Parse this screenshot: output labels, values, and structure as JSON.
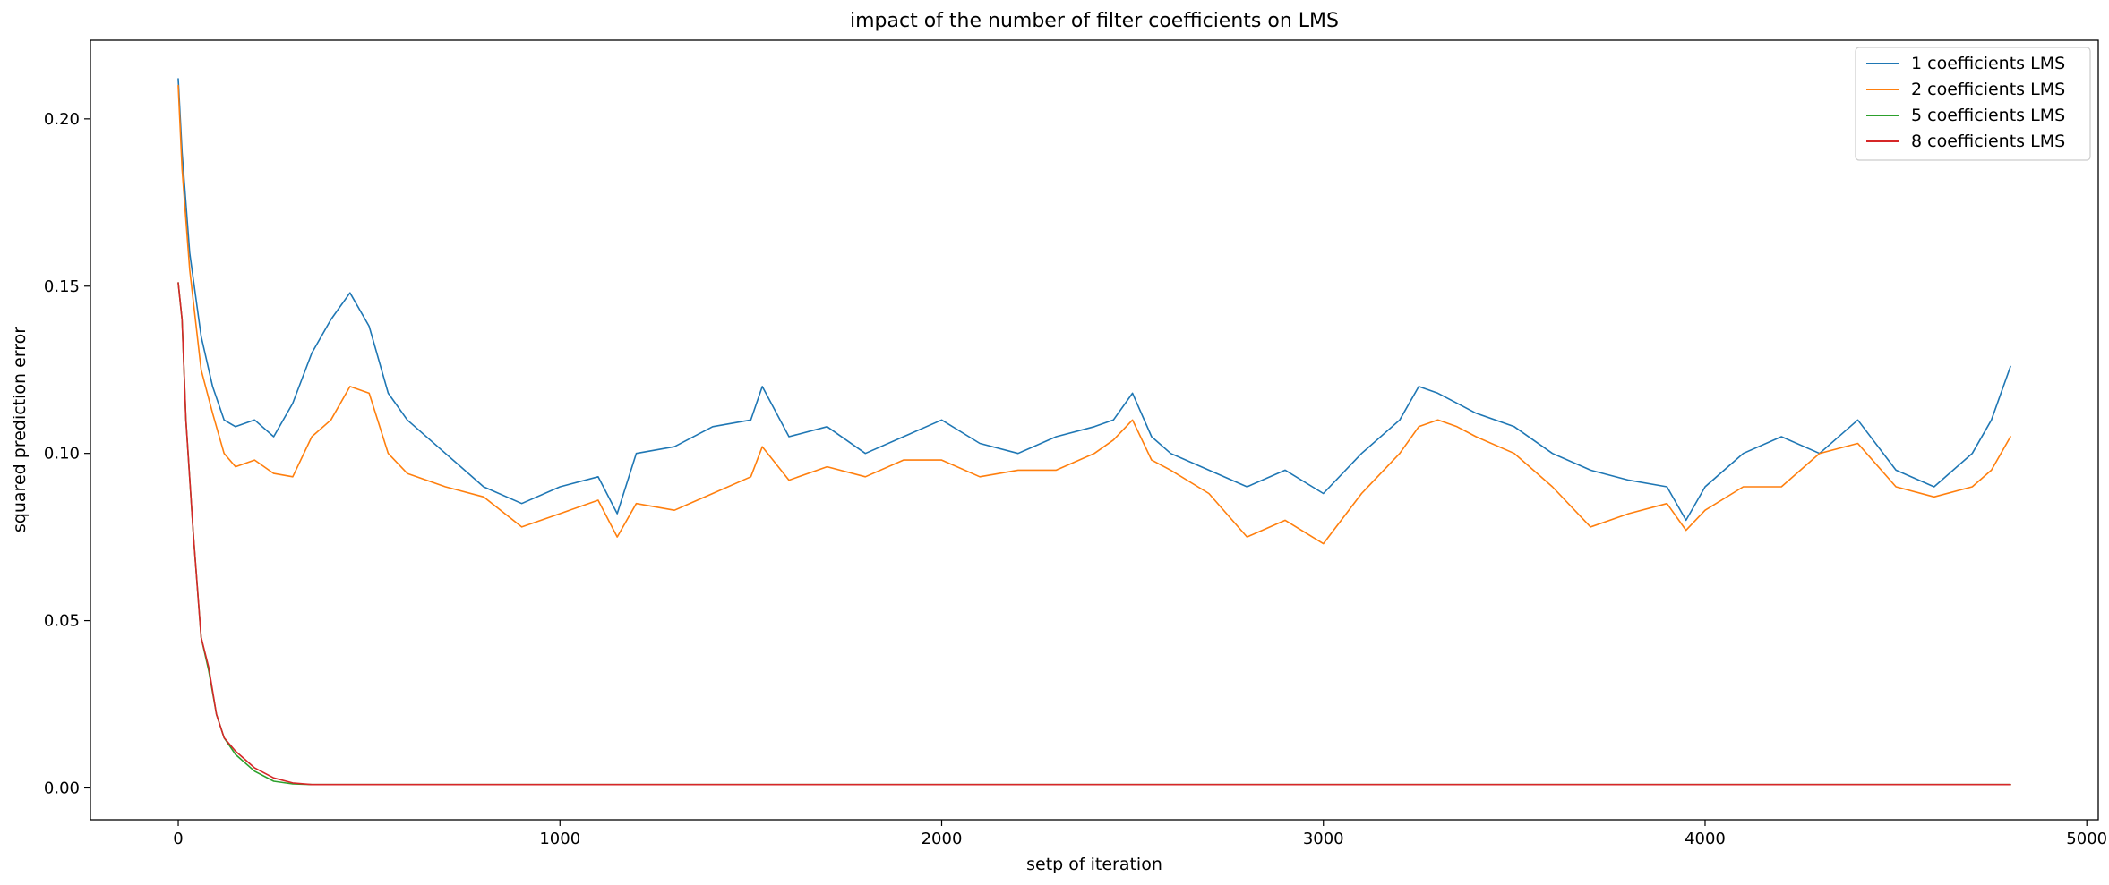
{
  "chart_data": {
    "type": "line",
    "title": "impact of the number of filter coefficients on LMS",
    "xlabel": "setp of iteration",
    "ylabel": "squared prediction error",
    "xlim": [
      -230,
      5030
    ],
    "ylim": [
      -0.0095,
      0.2235
    ],
    "x_ticks": [
      0,
      1000,
      2000,
      3000,
      4000,
      5000
    ],
    "x_tick_labels": [
      "0",
      "1000",
      "2000",
      "3000",
      "4000",
      "5000"
    ],
    "y_ticks": [
      0.0,
      0.05,
      0.1,
      0.15,
      0.2
    ],
    "y_tick_labels": [
      "0.00",
      "0.05",
      "0.10",
      "0.15",
      "0.20"
    ],
    "grid": false,
    "legend_position": "top-right",
    "series": [
      {
        "name": "1 coefficients LMS",
        "color": "#1f77b4",
        "x": [
          0,
          10,
          30,
          60,
          90,
          120,
          150,
          200,
          250,
          300,
          350,
          400,
          450,
          500,
          550,
          600,
          700,
          800,
          900,
          1000,
          1100,
          1150,
          1200,
          1300,
          1400,
          1500,
          1530,
          1600,
          1700,
          1800,
          1900,
          2000,
          2100,
          2200,
          2300,
          2400,
          2450,
          2500,
          2550,
          2600,
          2700,
          2800,
          2900,
          3000,
          3100,
          3200,
          3250,
          3300,
          3350,
          3400,
          3500,
          3600,
          3700,
          3800,
          3900,
          3950,
          4000,
          4100,
          4200,
          4300,
          4400,
          4500,
          4600,
          4700,
          4750,
          4800
        ],
        "y": [
          0.212,
          0.19,
          0.16,
          0.135,
          0.12,
          0.11,
          0.108,
          0.11,
          0.105,
          0.115,
          0.13,
          0.14,
          0.148,
          0.138,
          0.118,
          0.11,
          0.1,
          0.09,
          0.085,
          0.09,
          0.093,
          0.082,
          0.1,
          0.102,
          0.108,
          0.11,
          0.12,
          0.105,
          0.108,
          0.1,
          0.105,
          0.11,
          0.103,
          0.1,
          0.105,
          0.108,
          0.11,
          0.118,
          0.105,
          0.1,
          0.095,
          0.09,
          0.095,
          0.088,
          0.1,
          0.11,
          0.12,
          0.118,
          0.115,
          0.112,
          0.108,
          0.1,
          0.095,
          0.092,
          0.09,
          0.08,
          0.09,
          0.1,
          0.105,
          0.1,
          0.11,
          0.095,
          0.09,
          0.1,
          0.11,
          0.126
        ]
      },
      {
        "name": "2 coefficients LMS",
        "color": "#ff7f0e",
        "x": [
          0,
          10,
          30,
          60,
          90,
          120,
          150,
          200,
          250,
          300,
          350,
          400,
          450,
          500,
          550,
          600,
          700,
          800,
          900,
          1000,
          1100,
          1150,
          1200,
          1300,
          1400,
          1500,
          1530,
          1600,
          1700,
          1800,
          1900,
          2000,
          2100,
          2200,
          2300,
          2400,
          2450,
          2500,
          2550,
          2600,
          2700,
          2800,
          2900,
          3000,
          3100,
          3200,
          3250,
          3300,
          3350,
          3400,
          3500,
          3600,
          3700,
          3800,
          3900,
          3950,
          4000,
          4100,
          4200,
          4300,
          4400,
          4500,
          4600,
          4700,
          4750,
          4800
        ],
        "y": [
          0.21,
          0.185,
          0.155,
          0.125,
          0.112,
          0.1,
          0.096,
          0.098,
          0.094,
          0.093,
          0.105,
          0.11,
          0.12,
          0.118,
          0.1,
          0.094,
          0.09,
          0.087,
          0.078,
          0.082,
          0.086,
          0.075,
          0.085,
          0.083,
          0.088,
          0.093,
          0.102,
          0.092,
          0.096,
          0.093,
          0.098,
          0.098,
          0.093,
          0.095,
          0.095,
          0.1,
          0.104,
          0.11,
          0.098,
          0.095,
          0.088,
          0.075,
          0.08,
          0.073,
          0.088,
          0.1,
          0.108,
          0.11,
          0.108,
          0.105,
          0.1,
          0.09,
          0.078,
          0.082,
          0.085,
          0.077,
          0.083,
          0.09,
          0.09,
          0.1,
          0.103,
          0.09,
          0.087,
          0.09,
          0.095,
          0.105
        ]
      },
      {
        "name": "5 coefficients LMS",
        "color": "#2ca02c",
        "x": [
          0,
          10,
          20,
          40,
          60,
          80,
          100,
          120,
          150,
          200,
          250,
          300,
          350,
          400,
          600,
          1000,
          1500,
          2000,
          2500,
          3000,
          3500,
          4000,
          4500,
          4800
        ],
        "y": [
          0.151,
          0.14,
          0.11,
          0.075,
          0.045,
          0.035,
          0.022,
          0.015,
          0.01,
          0.005,
          0.002,
          0.0012,
          0.001,
          0.001,
          0.001,
          0.001,
          0.001,
          0.001,
          0.001,
          0.001,
          0.001,
          0.001,
          0.001,
          0.001
        ]
      },
      {
        "name": "8 coefficients LMS",
        "color": "#d62728",
        "x": [
          0,
          10,
          20,
          40,
          60,
          80,
          100,
          120,
          150,
          200,
          250,
          300,
          350,
          400,
          600,
          1000,
          1500,
          2000,
          2500,
          3000,
          3500,
          4000,
          4500,
          4800
        ],
        "y": [
          0.151,
          0.14,
          0.11,
          0.075,
          0.045,
          0.036,
          0.022,
          0.015,
          0.011,
          0.006,
          0.003,
          0.0015,
          0.001,
          0.001,
          0.001,
          0.001,
          0.001,
          0.001,
          0.001,
          0.001,
          0.001,
          0.001,
          0.001,
          0.001
        ]
      }
    ]
  }
}
